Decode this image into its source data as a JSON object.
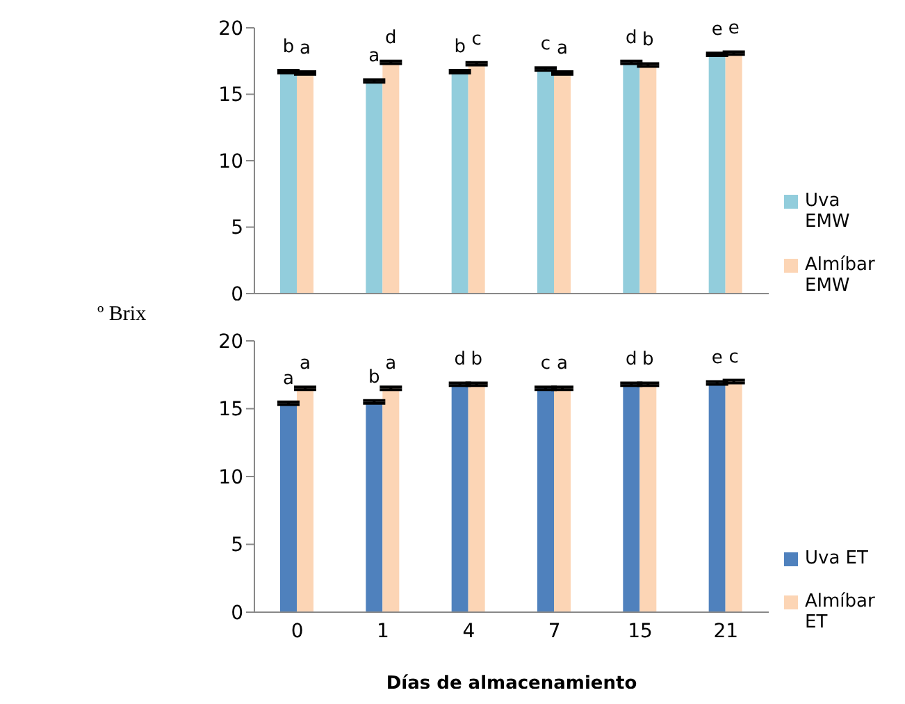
{
  "chart_data": [
    {
      "type": "bar",
      "ylabel": "º Brix",
      "categories": [
        "0",
        "1",
        "4",
        "7",
        "15",
        "21"
      ],
      "ylim": [
        0,
        20
      ],
      "yticks": [
        0,
        5,
        10,
        15,
        20
      ],
      "grid": false,
      "legend": "right",
      "tick_labels": "y",
      "series": [
        {
          "name": "Uva EMW",
          "color": "#92cddc",
          "values": [
            16.7,
            16.0,
            16.7,
            16.9,
            17.4,
            18.0
          ],
          "errors": [
            0.1,
            0.1,
            0.1,
            0.1,
            0.1,
            0.1
          ],
          "value_labels": [
            "b",
            "a",
            "b",
            "c",
            "d",
            "e"
          ]
        },
        {
          "name": "Almíbar EMW",
          "color": "#fcd5b5",
          "values": [
            16.6,
            17.4,
            17.3,
            16.6,
            17.2,
            18.1
          ],
          "errors": [
            0.1,
            0.1,
            0.1,
            0.1,
            0.1,
            0.1
          ],
          "value_labels": [
            "a",
            "d",
            "c",
            "a",
            "b",
            "e"
          ]
        }
      ]
    },
    {
      "type": "bar",
      "xlabel": "Días de almacenamiento",
      "categories": [
        "0",
        "1",
        "4",
        "7",
        "15",
        "21"
      ],
      "ylim": [
        0,
        20
      ],
      "yticks": [
        0,
        5,
        10,
        15,
        20
      ],
      "grid": false,
      "legend": "right",
      "series": [
        {
          "name": "Uva ET",
          "color": "#4f81bd",
          "values": [
            15.4,
            15.5,
            16.8,
            16.5,
            16.8,
            16.9
          ],
          "errors": [
            0.1,
            0.1,
            0.1,
            0.1,
            0.1,
            0.1
          ],
          "value_labels": [
            "a",
            "b",
            "d",
            "c",
            "d",
            "e"
          ]
        },
        {
          "name": "Almíbar ET",
          "color": "#fcd5b5",
          "values": [
            16.5,
            16.5,
            16.8,
            16.5,
            16.8,
            17.0
          ],
          "errors": [
            0.1,
            0.1,
            0.1,
            0.1,
            0.1,
            0.1
          ],
          "value_labels": [
            "a",
            "a",
            "b",
            "a",
            "b",
            "c"
          ]
        }
      ]
    }
  ]
}
